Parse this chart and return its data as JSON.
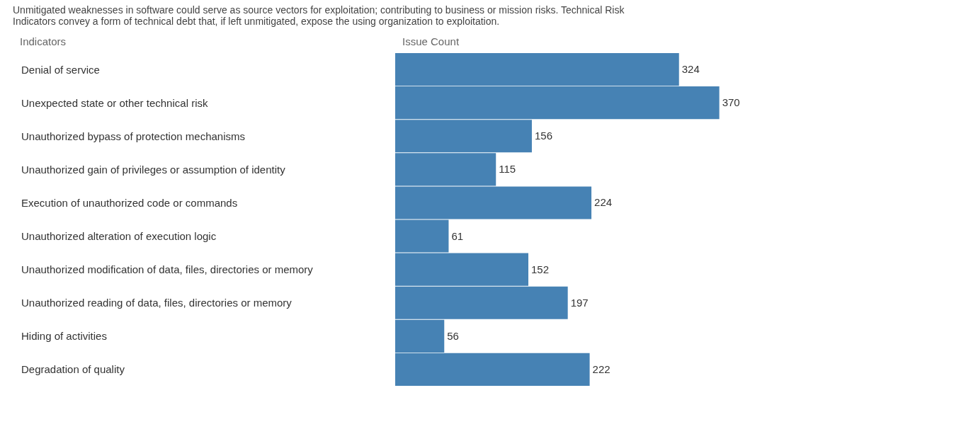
{
  "chart_data": {
    "type": "bar",
    "orientation": "horizontal",
    "title": "Unmitigated weaknesses in software could serve as source vectors for exploitation; contributing to business or mission risks. Technical Risk Indicators convey a form of technical debt that, if left unmitigated, expose the using organization to exploitation.",
    "ylabel": "Indicators",
    "xlabel": "Issue Count",
    "categories": [
      "Denial of service",
      "Unexpected state or other technical risk",
      "Unauthorized bypass of protection mechanisms",
      "Unauthorized gain of privileges or assumption of identity",
      "Execution of unauthorized code or commands",
      "Unauthorized alteration of execution logic",
      "Unauthorized modification of data, files, directories or memory",
      "Unauthorized reading of data, files, directories or memory",
      "Hiding of activities",
      "Degradation of quality"
    ],
    "values": [
      324,
      370,
      156,
      115,
      224,
      61,
      152,
      197,
      56,
      222
    ],
    "color": "#4682b4",
    "data_labels": true
  }
}
